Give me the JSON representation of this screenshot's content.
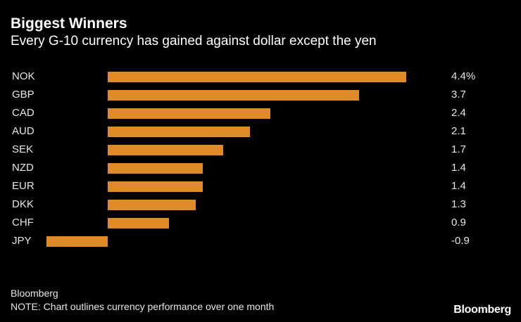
{
  "chart_data": {
    "type": "bar",
    "orientation": "horizontal",
    "title": "Biggest Winners",
    "subtitle": "Every G-10 currency has gained against dollar except the yen",
    "categories": [
      "NOK",
      "GBP",
      "CAD",
      "AUD",
      "SEK",
      "NZD",
      "EUR",
      "DKK",
      "CHF",
      "JPY"
    ],
    "values": [
      4.4,
      3.7,
      2.4,
      2.1,
      1.7,
      1.4,
      1.4,
      1.3,
      0.9,
      -0.9
    ],
    "value_labels": [
      "4.4%",
      "3.7",
      "2.4",
      "2.1",
      "1.7",
      "1.4",
      "1.4",
      "1.3",
      "0.9",
      "-0.9"
    ],
    "xlim": [
      -0.9,
      4.4
    ],
    "bar_color": "#e08b2a",
    "grid": false
  },
  "footer": {
    "source": "Bloomberg",
    "note": "NOTE: Chart outlines currency performance over one month",
    "logo": "Bloomberg"
  }
}
